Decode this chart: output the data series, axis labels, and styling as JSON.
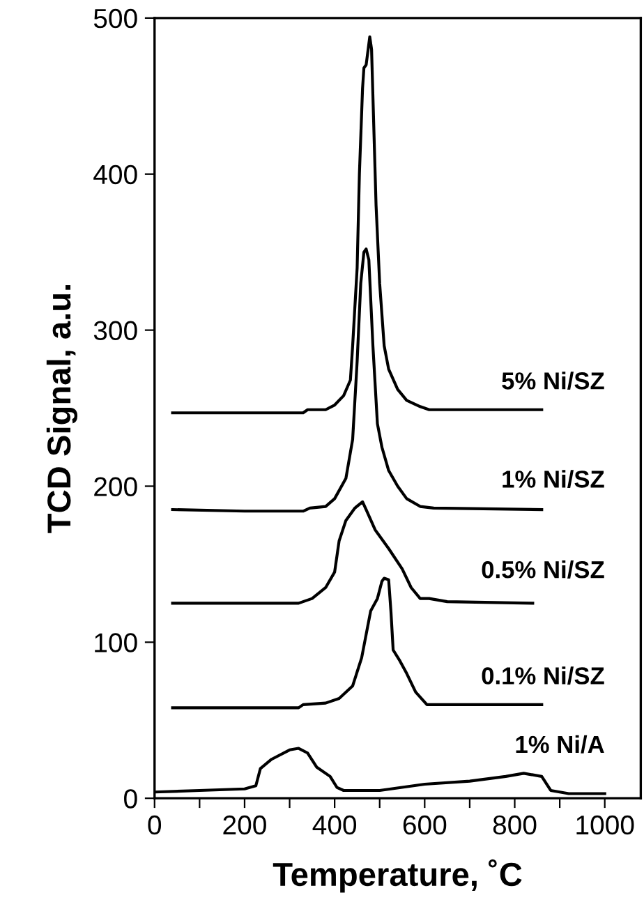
{
  "chart_data": {
    "type": "line",
    "xlabel": "Temperature, ˚C",
    "ylabel": "TCD Signal, a.u.",
    "xlim": [
      0,
      1080
    ],
    "ylim": [
      0,
      500
    ],
    "xticks": [
      0,
      {
        "value": 100,
        "label": null
      },
      200,
      {
        "value": 300,
        "label": null
      },
      400,
      {
        "value": 500,
        "label": null
      },
      600,
      {
        "value": 700,
        "label": null
      },
      800,
      {
        "value": 900,
        "label": null
      },
      1000
    ],
    "yticks": [
      0,
      100,
      200,
      300,
      400,
      500
    ],
    "grid": false,
    "legend": false,
    "marker": "none",
    "line_style": "solid",
    "series": [
      {
        "name": "5% Ni/SZ",
        "color": "#000000",
        "x": [
          40,
          330,
          340,
          380,
          400,
          420,
          435,
          440,
          450,
          455,
          462,
          465,
          470,
          478,
          482,
          488,
          492,
          500,
          510,
          520,
          540,
          560,
          590,
          610,
          860
        ],
        "values": [
          247,
          247,
          249,
          249,
          252,
          258,
          268,
          290,
          340,
          400,
          455,
          468,
          470,
          488,
          480,
          420,
          380,
          330,
          290,
          275,
          262,
          255,
          251,
          249,
          249
        ]
      },
      {
        "name": "1% Ni/SZ",
        "color": "#000000",
        "x": [
          40,
          200,
          330,
          345,
          380,
          400,
          425,
          440,
          450,
          458,
          465,
          470,
          476,
          485,
          495,
          505,
          520,
          540,
          560,
          590,
          620,
          860
        ],
        "values": [
          185,
          184,
          184,
          186,
          187,
          192,
          205,
          230,
          280,
          330,
          350,
          352,
          345,
          290,
          240,
          225,
          210,
          200,
          192,
          187,
          186,
          185
        ]
      },
      {
        "name": "0.5% Ni/SZ",
        "color": "#000000",
        "x": [
          40,
          320,
          350,
          380,
          400,
          410,
          425,
          445,
          462,
          470,
          490,
          520,
          550,
          570,
          590,
          610,
          650,
          840
        ],
        "values": [
          125,
          125,
          128,
          135,
          145,
          165,
          178,
          186,
          190,
          185,
          172,
          160,
          147,
          135,
          128,
          128,
          126,
          125
        ]
      },
      {
        "name": "0.1% Ni/SZ",
        "color": "#000000",
        "x": [
          40,
          320,
          330,
          380,
          410,
          440,
          460,
          480,
          495,
          505,
          510,
          520,
          525,
          530,
          545,
          560,
          580,
          605,
          860
        ],
        "values": [
          58,
          58,
          60,
          61,
          64,
          72,
          90,
          120,
          128,
          139,
          141,
          140,
          120,
          95,
          88,
          80,
          68,
          60,
          60
        ]
      },
      {
        "name": "1% Ni/A",
        "color": "#000000",
        "x": [
          0,
          100,
          200,
          225,
          235,
          260,
          300,
          320,
          340,
          360,
          390,
          405,
          420,
          500,
          600,
          700,
          780,
          820,
          860,
          880,
          920,
          1000
        ],
        "values": [
          4,
          5,
          6,
          8,
          19,
          25,
          31,
          32,
          29,
          20,
          14,
          7,
          5,
          5,
          9,
          11,
          14,
          16,
          14,
          5,
          3,
          3
        ]
      }
    ]
  }
}
